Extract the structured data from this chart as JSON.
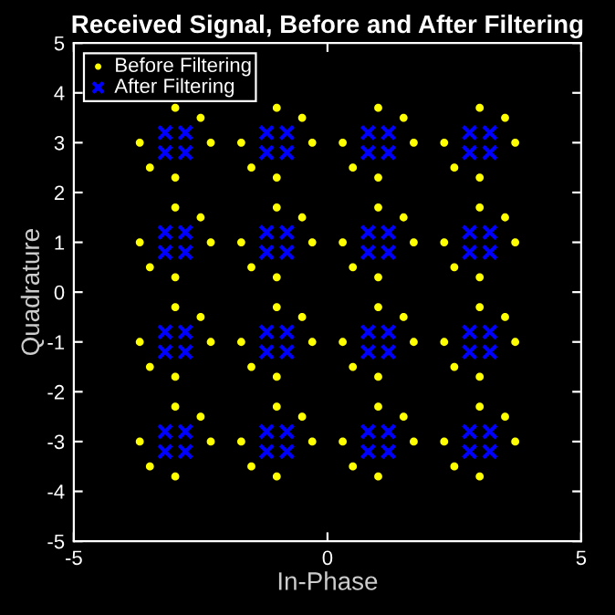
{
  "chart_data": {
    "type": "scatter",
    "title": "Received Signal, Before and After Filtering",
    "xlabel": "In-Phase",
    "ylabel": "Quadrature",
    "xlim": [
      -5,
      5
    ],
    "xticks": [
      -5,
      0,
      5
    ],
    "ylim": [
      -5,
      5
    ],
    "yticks": [
      -5,
      -4,
      -3,
      -2,
      -1,
      0,
      1,
      2,
      3,
      4,
      5
    ],
    "grid": false,
    "legend": "top left",
    "series": [
      {
        "name": "Before Filtering",
        "color": "#ffff00",
        "marker": "circle",
        "x": [
          -3,
          -2.3,
          -3,
          -3.7,
          -2.5,
          -3.5,
          -1,
          -0.3,
          -1,
          -1.7,
          -0.5,
          -1.5,
          1,
          1.7,
          1,
          0.3,
          1.5,
          0.5,
          3,
          3.7,
          3,
          2.3,
          3.5,
          2.5,
          -3,
          -2.3,
          -3,
          -3.7,
          -2.5,
          -3.5,
          -1,
          -0.3,
          -1,
          -1.7,
          -0.5,
          -1.5,
          1,
          1.7,
          1,
          0.3,
          1.5,
          0.5,
          3,
          3.7,
          3,
          2.3,
          3.5,
          2.5,
          -3,
          -2.3,
          -3,
          -3.7,
          -2.5,
          -3.5,
          -1,
          -0.3,
          -1,
          -1.7,
          -0.5,
          -1.5,
          1,
          1.7,
          1,
          0.3,
          1.5,
          0.5,
          3,
          3.7,
          3,
          2.3,
          3.5,
          2.5,
          -3,
          -2.3,
          -3,
          -3.7,
          -2.5,
          -3.5,
          -1,
          -0.3,
          -1,
          -1.7,
          -0.5,
          -1.5,
          1,
          1.7,
          1,
          0.3,
          1.5,
          0.5,
          3,
          3.7,
          3,
          2.3,
          3.5,
          2.5
        ],
        "values": [
          3.7,
          3,
          2.3,
          3,
          3.5,
          2.5,
          3.7,
          3,
          2.3,
          3,
          3.5,
          2.5,
          3.7,
          3,
          2.3,
          3,
          3.5,
          2.5,
          3.7,
          3,
          2.3,
          3,
          3.5,
          2.5,
          1.7,
          1,
          0.3,
          1,
          1.5,
          0.5,
          1.7,
          1,
          0.3,
          1,
          1.5,
          0.5,
          1.7,
          1,
          0.3,
          1,
          1.5,
          0.5,
          1.7,
          1,
          0.3,
          1,
          1.5,
          0.5,
          -0.3,
          -1,
          -1.7,
          -1,
          -0.5,
          -1.5,
          -0.3,
          -1,
          -1.7,
          -1,
          -0.5,
          -1.5,
          -0.3,
          -1,
          -1.7,
          -1,
          -0.5,
          -1.5,
          -0.3,
          -1,
          -1.7,
          -1,
          -0.5,
          -1.5,
          -2.3,
          -3,
          -3.7,
          -3,
          -2.5,
          -3.5,
          -2.3,
          -3,
          -3.7,
          -3,
          -2.5,
          -3.5,
          -2.3,
          -3,
          -3.7,
          -3,
          -2.5,
          -3.5,
          -2.3,
          -3,
          -3.7,
          -3,
          -2.5,
          -3.5
        ]
      },
      {
        "name": "After Filtering",
        "color": "#0000ff",
        "marker": "cross",
        "x": [
          -2.8,
          -3.2,
          -2.8,
          -3.2,
          -0.8,
          -1.2,
          -0.8,
          -1.2,
          1.2,
          0.8,
          1.2,
          0.8,
          3.2,
          2.8,
          3.2,
          2.8,
          -2.8,
          -3.2,
          -2.8,
          -3.2,
          -0.8,
          -1.2,
          -0.8,
          -1.2,
          1.2,
          0.8,
          1.2,
          0.8,
          3.2,
          2.8,
          3.2,
          2.8,
          -2.8,
          -3.2,
          -2.8,
          -3.2,
          -0.8,
          -1.2,
          -0.8,
          -1.2,
          1.2,
          0.8,
          1.2,
          0.8,
          3.2,
          2.8,
          3.2,
          2.8,
          -2.8,
          -3.2,
          -2.8,
          -3.2,
          -0.8,
          -1.2,
          -0.8,
          -1.2,
          1.2,
          0.8,
          1.2,
          0.8,
          3.2,
          2.8,
          3.2,
          2.8
        ],
        "values": [
          3.2,
          2.8,
          2.8,
          3.2,
          3.2,
          2.8,
          2.8,
          3.2,
          3.2,
          2.8,
          2.8,
          3.2,
          3.2,
          2.8,
          2.8,
          3.2,
          1.2,
          0.8,
          0.8,
          1.2,
          1.2,
          0.8,
          0.8,
          1.2,
          1.2,
          0.8,
          0.8,
          1.2,
          1.2,
          0.8,
          0.8,
          1.2,
          -0.8,
          -1.2,
          -1.2,
          -0.8,
          -0.8,
          -1.2,
          -1.2,
          -0.8,
          -0.8,
          -1.2,
          -1.2,
          -0.8,
          -0.8,
          -1.2,
          -1.2,
          -0.8,
          -2.8,
          -3.2,
          -3.2,
          -2.8,
          -2.8,
          -3.2,
          -3.2,
          -2.8,
          -2.8,
          -3.2,
          -3.2,
          -2.8,
          -2.8,
          -3.2,
          -3.2,
          -2.8
        ]
      }
    ]
  }
}
